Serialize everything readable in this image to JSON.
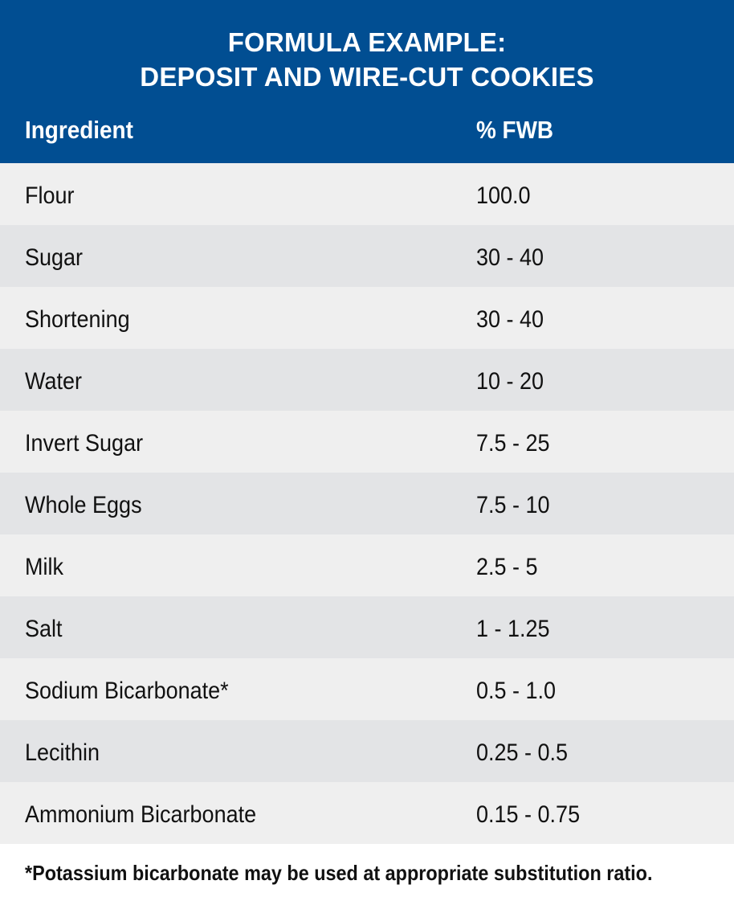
{
  "header": {
    "title_line1": "FORMULA EXAMPLE:",
    "title_line2": "DEPOSIT AND WIRE-CUT COOKIES",
    "col_ingredient": "Ingredient",
    "col_fwb": "% FWB"
  },
  "rows": [
    {
      "ingredient": "Flour",
      "fwb": "100.0"
    },
    {
      "ingredient": "Sugar",
      "fwb": "30 - 40"
    },
    {
      "ingredient": "Shortening",
      "fwb": "30 - 40"
    },
    {
      "ingredient": "Water",
      "fwb": "10 - 20"
    },
    {
      "ingredient": "Invert Sugar",
      "fwb": "7.5 - 25"
    },
    {
      "ingredient": "Whole Eggs",
      "fwb": "7.5 - 10"
    },
    {
      "ingredient": "Milk",
      "fwb": "2.5 - 5"
    },
    {
      "ingredient": "Salt",
      "fwb": "1 - 1.25"
    },
    {
      "ingredient": "Sodium Bicarbonate*",
      "fwb": "0.5 - 1.0"
    },
    {
      "ingredient": "Lecithin",
      "fwb": "0.25 - 0.5"
    },
    {
      "ingredient": "Ammonium Bicarbonate",
      "fwb": "0.15 - 0.75"
    }
  ],
  "footnote": "*Potassium bicarbonate may be used at appropriate substitution ratio.",
  "colors": {
    "header_bg": "#014e92",
    "row_light": "#efefef",
    "row_dark": "#e3e4e6"
  }
}
